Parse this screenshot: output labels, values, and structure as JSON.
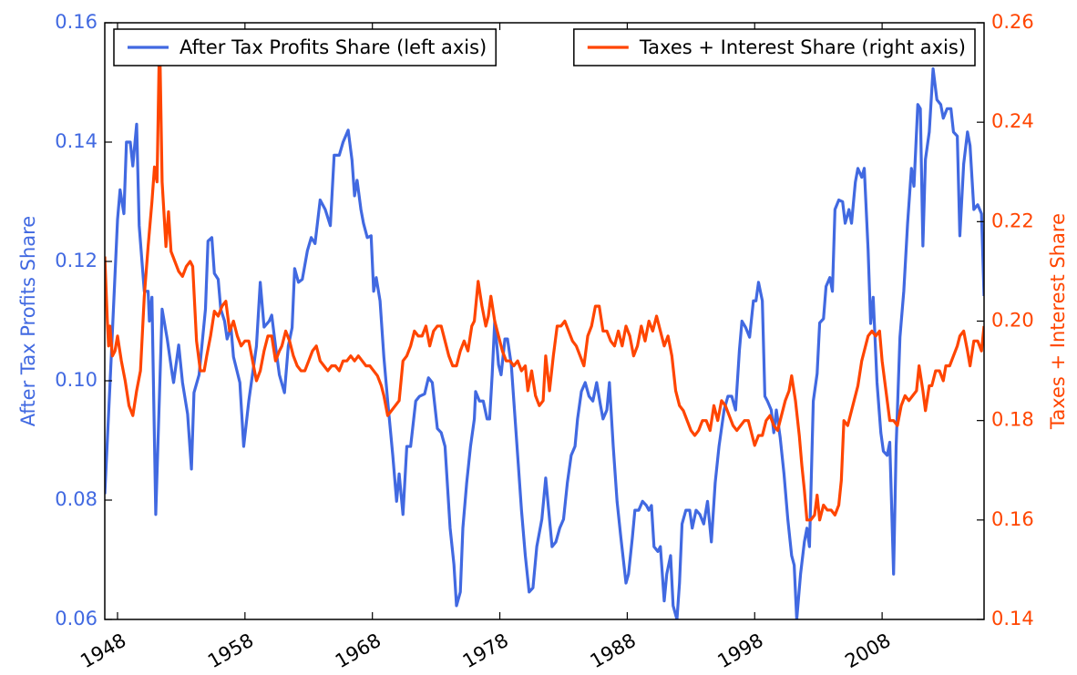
{
  "chart_data": {
    "type": "line",
    "ylabel": "After Tax Profits Share",
    "y2label": "Taxes + Interest Share",
    "xlim": [
      1947,
      2016
    ],
    "xticks": [
      1948,
      1958,
      1968,
      1978,
      1988,
      1998,
      2008
    ],
    "ylim": [
      0.06,
      0.16
    ],
    "yticks": [
      0.06,
      0.08,
      {
        "value": 0.1,
        "label": "0.10"
      },
      0.12,
      0.14,
      0.16
    ],
    "y2lim": [
      0.14,
      0.26
    ],
    "y2ticks": [
      0.14,
      0.16,
      0.18,
      {
        "value": 0.2,
        "label": "0.20"
      },
      0.22,
      0.24,
      0.26
    ],
    "series": [
      {
        "name": "After Tax Profits Share (left axis)",
        "color": "#4169e1",
        "legend": "upper left",
        "x": [
          1947.0,
          1947.4,
          1948.0,
          1948.2,
          1948.5,
          1948.7,
          1949.0,
          1949.2,
          1949.5,
          1949.7,
          1950.1,
          1950.4,
          1950.5,
          1950.7,
          1951.0,
          1951.5,
          1951.9,
          1952.3,
          1952.4,
          1952.8,
          1953.1,
          1953.5,
          1953.8,
          1954.0,
          1954.4,
          1954.9,
          1955.1,
          1955.4,
          1955.6,
          1955.9,
          1956.1,
          1956.4,
          1956.6,
          1956.9,
          1957.1,
          1957.6,
          1957.9,
          1958.3,
          1958.9,
          1959.2,
          1959.5,
          1959.9,
          1960.1,
          1960.4,
          1960.7,
          1961.1,
          1961.4,
          1961.7,
          1961.9,
          1962.2,
          1962.5,
          1962.9,
          1963.2,
          1963.5,
          1963.9,
          1964.3,
          1964.7,
          1965.0,
          1965.4,
          1965.7,
          1966.1,
          1966.4,
          1966.6,
          1966.8,
          1967.1,
          1967.3,
          1967.6,
          1967.9,
          1968.1,
          1968.3,
          1968.6,
          1968.9,
          1969.2,
          1969.6,
          1969.9,
          1970.1,
          1970.4,
          1970.7,
          1971.0,
          1971.4,
          1971.7,
          1972.1,
          1972.4,
          1972.7,
          1973.1,
          1973.4,
          1973.7,
          1974.1,
          1974.4,
          1974.6,
          1974.9,
          1975.1,
          1975.4,
          1975.7,
          1976.0,
          1976.1,
          1976.4,
          1976.7,
          1977.0,
          1977.2,
          1977.4,
          1977.6,
          1977.9,
          1978.1,
          1978.4,
          1978.6,
          1978.9,
          1979.1,
          1979.4,
          1979.7,
          1980.0,
          1980.3,
          1980.6,
          1980.9,
          1981.3,
          1981.6,
          1981.9,
          1982.1,
          1982.4,
          1982.7,
          1983.0,
          1983.3,
          1983.6,
          1983.9,
          1984.1,
          1984.4,
          1984.7,
          1985.0,
          1985.3,
          1985.6,
          1985.9,
          1986.1,
          1986.4,
          1986.6,
          1986.9,
          1987.2,
          1987.5,
          1987.9,
          1988.1,
          1988.4,
          1988.6,
          1988.9,
          1989.2,
          1989.5,
          1989.7,
          1989.9,
          1990.1,
          1990.4,
          1990.6,
          1990.9,
          1991.1,
          1991.4,
          1991.6,
          1991.9,
          1992.1,
          1992.3,
          1992.6,
          1992.9,
          1993.1,
          1993.4,
          1993.7,
          1994.0,
          1994.3,
          1994.6,
          1994.9,
          1995.2,
          1995.6,
          1995.9,
          1996.2,
          1996.5,
          1996.8,
          1997.0,
          1997.3,
          1997.6,
          1997.9,
          1998.1,
          1998.3,
          1998.6,
          1998.8,
          1999.0,
          1999.3,
          1999.5,
          1999.7,
          2000.0,
          2000.3,
          2000.6,
          2000.9,
          2001.1,
          2001.3,
          2001.6,
          2001.9,
          2002.1,
          2002.3,
          2002.6,
          2002.9,
          2003.1,
          2003.4,
          2003.6,
          2003.9,
          2004.1,
          2004.3,
          2004.6,
          2004.9,
          2005.1,
          2005.4,
          2005.6,
          2005.9,
          2006.1,
          2006.4,
          2006.6,
          2006.9,
          2007.1,
          2007.3,
          2007.6,
          2007.9,
          2008.1,
          2008.4,
          2008.6,
          2008.9,
          2009.1,
          2009.4,
          2009.7,
          2010.0,
          2010.3,
          2010.5,
          2010.8,
          2011.0,
          2011.2,
          2011.4,
          2011.7,
          2012.0,
          2012.3,
          2012.6,
          2012.8,
          2013.1,
          2013.4,
          2013.6,
          2013.9,
          2014.1,
          2014.4,
          2014.7,
          2014.9,
          2015.2,
          2015.5,
          2015.8,
          2016.0
        ],
        "values": [
          0.081,
          0.099,
          0.127,
          0.132,
          0.128,
          0.14,
          0.14,
          0.136,
          0.143,
          0.126,
          0.115,
          0.115,
          0.11,
          0.114,
          0.0776,
          0.112,
          0.107,
          0.101,
          0.0997,
          0.106,
          0.0997,
          0.0944,
          0.0852,
          0.098,
          0.101,
          0.112,
          0.1234,
          0.124,
          0.118,
          0.117,
          0.112,
          0.11,
          0.107,
          0.109,
          0.104,
          0.0997,
          0.089,
          0.0966,
          0.1058,
          0.1165,
          0.109,
          0.11,
          0.111,
          0.1058,
          0.101,
          0.098,
          0.1058,
          0.1089,
          0.1188,
          0.1165,
          0.117,
          0.1218,
          0.124,
          0.123,
          0.1303,
          0.1287,
          0.126,
          0.1378,
          0.1378,
          0.14,
          0.142,
          0.137,
          0.131,
          0.1336,
          0.1287,
          0.1264,
          0.124,
          0.1243,
          0.115,
          0.1173,
          0.1134,
          0.104,
          0.0966,
          0.0875,
          0.0798,
          0.0844,
          0.0776,
          0.089,
          0.089,
          0.0966,
          0.0974,
          0.0978,
          0.1005,
          0.0997,
          0.092,
          0.0913,
          0.089,
          0.0753,
          0.0692,
          0.0623,
          0.0646,
          0.0753,
          0.0829,
          0.089,
          0.0936,
          0.0982,
          0.0966,
          0.0966,
          0.0936,
          0.0936,
          0.101,
          0.11,
          0.1027,
          0.101,
          0.107,
          0.107,
          0.1027,
          0.0966,
          0.0875,
          0.0783,
          0.0707,
          0.0646,
          0.0653,
          0.0722,
          0.0768,
          0.0837,
          0.0768,
          0.0722,
          0.073,
          0.0753,
          0.0768,
          0.0829,
          0.0875,
          0.089,
          0.0936,
          0.0982,
          0.0997,
          0.0974,
          0.0966,
          0.0997,
          0.0959,
          0.0936,
          0.0951,
          0.0997,
          0.089,
          0.0798,
          0.0737,
          0.0661,
          0.0676,
          0.0737,
          0.0783,
          0.0783,
          0.0798,
          0.0791,
          0.0783,
          0.0791,
          0.0722,
          0.0714,
          0.0722,
          0.0631,
          0.0676,
          0.0707,
          0.0623,
          0.06,
          0.0661,
          0.076,
          0.0783,
          0.0783,
          0.0753,
          0.0783,
          0.0776,
          0.076,
          0.0798,
          0.073,
          0.0829,
          0.089,
          0.0951,
          0.0974,
          0.0974,
          0.0951,
          0.1051,
          0.11,
          0.1089,
          0.1073,
          0.1134,
          0.1134,
          0.1165,
          0.1134,
          0.0974,
          0.0966,
          0.0951,
          0.0913,
          0.0951,
          0.0905,
          0.0844,
          0.0768,
          0.0707,
          0.0691,
          0.06,
          0.0676,
          0.073,
          0.0753,
          0.0722,
          0.0966,
          0.1012,
          0.1097,
          0.1104,
          0.1158,
          0.1173,
          0.115,
          0.1287,
          0.1303,
          0.13,
          0.1264,
          0.1287,
          0.1264,
          0.1333,
          0.1356,
          0.1341,
          0.1356,
          0.122,
          0.1096,
          0.114,
          0.0997,
          0.0913,
          0.0882,
          0.0875,
          0.0897,
          0.0676,
          0.089,
          0.1073,
          0.115,
          0.1264,
          0.1356,
          0.1326,
          0.1463,
          0.1456,
          0.1226,
          0.1371,
          0.1417,
          0.1523,
          0.1471,
          0.1463,
          0.144,
          0.1456,
          0.1456,
          0.1417,
          0.141,
          0.1243,
          0.1363,
          0.1417,
          0.1394,
          0.1287,
          0.1295,
          0.128,
          0.1142
        ]
      },
      {
        "name": "Taxes + Interest Share (right axis)",
        "color": "#ff4500",
        "axis": "y2",
        "legend": "upper right",
        "x": [
          1947.0,
          1947.2,
          1947.3,
          1947.4,
          1947.6,
          1947.8,
          1948.0,
          1948.3,
          1948.6,
          1948.9,
          1949.2,
          1949.5,
          1949.8,
          1950.1,
          1950.4,
          1950.7,
          1950.9,
          1951.1,
          1951.3,
          1951.5,
          1951.8,
          1952.0,
          1952.2,
          1952.5,
          1952.8,
          1953.1,
          1953.4,
          1953.7,
          1953.9,
          1954.2,
          1954.5,
          1954.8,
          1955.0,
          1955.3,
          1955.6,
          1955.9,
          1956.2,
          1956.5,
          1956.8,
          1957.1,
          1957.4,
          1957.7,
          1958.0,
          1958.3,
          1958.6,
          1958.9,
          1959.2,
          1959.5,
          1959.8,
          1960.1,
          1960.4,
          1960.7,
          1960.9,
          1961.2,
          1961.5,
          1961.8,
          1962.1,
          1962.4,
          1962.7,
          1963.0,
          1963.3,
          1963.6,
          1963.9,
          1964.2,
          1964.5,
          1964.8,
          1965.1,
          1965.4,
          1965.7,
          1966.0,
          1966.3,
          1966.6,
          1966.9,
          1967.2,
          1967.5,
          1967.8,
          1968.1,
          1968.4,
          1968.7,
          1968.9,
          1969.2,
          1969.5,
          1969.8,
          1970.1,
          1970.4,
          1970.7,
          1971.0,
          1971.3,
          1971.6,
          1971.9,
          1972.2,
          1972.5,
          1972.8,
          1973.1,
          1973.4,
          1973.7,
          1974.0,
          1974.3,
          1974.6,
          1974.9,
          1975.2,
          1975.5,
          1975.8,
          1976.0,
          1976.3,
          1976.6,
          1976.9,
          1977.1,
          1977.3,
          1977.6,
          1977.9,
          1978.2,
          1978.5,
          1978.8,
          1979.1,
          1979.4,
          1979.7,
          1980.0,
          1980.2,
          1980.5,
          1980.8,
          1981.1,
          1981.4,
          1981.6,
          1981.9,
          1982.2,
          1982.5,
          1982.8,
          1983.1,
          1983.4,
          1983.7,
          1984.0,
          1984.3,
          1984.6,
          1984.9,
          1985.2,
          1985.5,
          1985.8,
          1986.1,
          1986.4,
          1986.7,
          1987.0,
          1987.3,
          1987.6,
          1987.9,
          1988.2,
          1988.5,
          1988.8,
          1989.1,
          1989.4,
          1989.7,
          1990.0,
          1990.3,
          1990.6,
          1990.9,
          1991.2,
          1991.5,
          1991.8,
          1992.1,
          1992.4,
          1992.7,
          1993.0,
          1993.3,
          1993.6,
          1993.9,
          1994.2,
          1994.5,
          1994.8,
          1995.1,
          1995.4,
          1995.7,
          1996.0,
          1996.3,
          1996.6,
          1996.9,
          1997.2,
          1997.5,
          1997.8,
          1998.0,
          1998.3,
          1998.6,
          1998.9,
          1999.2,
          1999.5,
          1999.8,
          2000.1,
          2000.4,
          2000.7,
          2000.9,
          2001.2,
          2001.5,
          2001.7,
          2001.9,
          2002.1,
          2002.4,
          2002.7,
          2002.9,
          2003.1,
          2003.4,
          2003.7,
          2004.0,
          2004.3,
          2004.6,
          2004.8,
          2005.0,
          2005.3,
          2005.6,
          2005.8,
          2006.1,
          2006.4,
          2006.6,
          2006.9,
          2007.2,
          2007.5,
          2007.8,
          2008.0,
          2008.3,
          2008.6,
          2008.9,
          2009.2,
          2009.5,
          2009.8,
          2010.1,
          2010.4,
          2010.7,
          2010.9,
          2011.2,
          2011.4,
          2011.7,
          2011.9,
          2012.2,
          2012.5,
          2012.8,
          2013.0,
          2013.3,
          2013.6,
          2013.9,
          2014.1,
          2014.4,
          2014.7,
          2014.9,
          2015.2,
          2015.5,
          2015.8,
          2016.0
        ],
        "values": [
          0.213,
          0.2,
          0.195,
          0.199,
          0.193,
          0.194,
          0.197,
          0.192,
          0.188,
          0.183,
          0.181,
          0.186,
          0.19,
          0.205,
          0.215,
          0.224,
          0.231,
          0.228,
          0.258,
          0.228,
          0.215,
          0.222,
          0.214,
          0.212,
          0.21,
          0.209,
          0.211,
          0.212,
          0.211,
          0.196,
          0.19,
          0.19,
          0.193,
          0.197,
          0.202,
          0.201,
          0.203,
          0.204,
          0.198,
          0.2,
          0.197,
          0.195,
          0.196,
          0.196,
          0.192,
          0.188,
          0.19,
          0.194,
          0.197,
          0.197,
          0.192,
          0.194,
          0.195,
          0.198,
          0.196,
          0.193,
          0.191,
          0.19,
          0.19,
          0.192,
          0.194,
          0.195,
          0.192,
          0.191,
          0.19,
          0.191,
          0.191,
          0.19,
          0.192,
          0.192,
          0.193,
          0.192,
          0.193,
          0.192,
          0.191,
          0.191,
          0.19,
          0.189,
          0.187,
          0.185,
          0.181,
          0.182,
          0.183,
          0.184,
          0.192,
          0.193,
          0.195,
          0.198,
          0.197,
          0.197,
          0.199,
          0.195,
          0.198,
          0.199,
          0.199,
          0.196,
          0.193,
          0.191,
          0.191,
          0.194,
          0.196,
          0.194,
          0.199,
          0.2,
          0.208,
          0.203,
          0.199,
          0.201,
          0.205,
          0.2,
          0.197,
          0.194,
          0.192,
          0.192,
          0.191,
          0.192,
          0.19,
          0.191,
          0.186,
          0.19,
          0.185,
          0.183,
          0.184,
          0.193,
          0.186,
          0.193,
          0.199,
          0.199,
          0.2,
          0.198,
          0.196,
          0.195,
          0.193,
          0.191,
          0.197,
          0.199,
          0.203,
          0.203,
          0.198,
          0.198,
          0.196,
          0.195,
          0.198,
          0.195,
          0.199,
          0.197,
          0.193,
          0.195,
          0.199,
          0.196,
          0.2,
          0.198,
          0.201,
          0.198,
          0.195,
          0.197,
          0.193,
          0.186,
          0.183,
          0.182,
          0.18,
          0.178,
          0.177,
          0.178,
          0.18,
          0.18,
          0.178,
          0.183,
          0.18,
          0.184,
          0.183,
          0.181,
          0.179,
          0.178,
          0.179,
          0.18,
          0.18,
          0.177,
          0.175,
          0.177,
          0.177,
          0.18,
          0.181,
          0.179,
          0.178,
          0.181,
          0.184,
          0.186,
          0.189,
          0.184,
          0.177,
          0.171,
          0.166,
          0.16,
          0.16,
          0.161,
          0.165,
          0.16,
          0.163,
          0.162,
          0.162,
          0.161,
          0.163,
          0.168,
          0.18,
          0.179,
          0.182,
          0.184,
          0.187,
          0.192,
          0.194,
          0.197,
          0.198,
          0.197,
          0.198,
          0.192,
          0.186,
          0.18,
          0.18,
          0.179,
          0.183,
          0.185,
          0.184,
          0.185,
          0.186,
          0.191,
          0.186,
          0.182,
          0.187,
          0.187,
          0.19,
          0.19,
          0.188,
          0.191,
          0.191,
          0.193,
          0.195,
          0.197,
          0.198,
          0.194,
          0.191,
          0.196,
          0.196,
          0.194,
          0.199
        ]
      }
    ]
  }
}
